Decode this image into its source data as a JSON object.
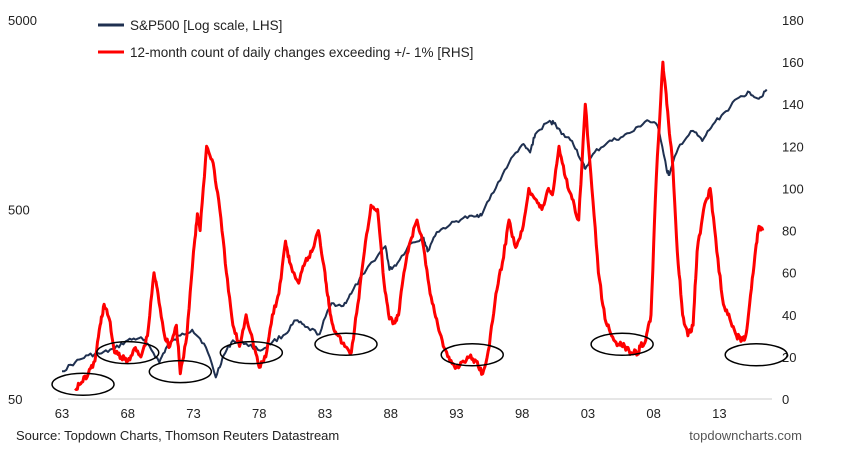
{
  "chart_data": {
    "type": "line",
    "title": "",
    "legend": [
      {
        "name": "S&P500 [Log scale, LHS]",
        "color": "#1f3050"
      },
      {
        "name": "12-month count of daily changes exceeding +/- 1% [RHS]",
        "color": "#ff0000"
      }
    ],
    "x_ticks": [
      "63",
      "68",
      "73",
      "78",
      "83",
      "88",
      "93",
      "98",
      "03",
      "08",
      "13"
    ],
    "x_tick_years": [
      1963,
      1968,
      1973,
      1978,
      1983,
      1988,
      1993,
      1998,
      2003,
      2008,
      2013
    ],
    "xlim": [
      1963,
      2017
    ],
    "left_axis": {
      "scale": "log",
      "ticks": [
        "50",
        "500",
        "5000"
      ],
      "tick_values": [
        50,
        500,
        5000
      ],
      "ylim": [
        50,
        5000
      ]
    },
    "right_axis": {
      "ticks": [
        "0",
        "20",
        "40",
        "60",
        "80",
        "100",
        "120",
        "140",
        "160",
        "180"
      ],
      "tick_values": [
        0,
        20,
        40,
        60,
        80,
        100,
        120,
        140,
        160,
        180
      ],
      "ylim": [
        0,
        180
      ]
    },
    "series": [
      {
        "name": "S&P500 [Log scale, LHS]",
        "axis": "left",
        "color": "#1f3050",
        "x": [
          1963.0,
          1964.0,
          1965.0,
          1966.0,
          1967.0,
          1968.0,
          1968.9,
          1969.5,
          1970.4,
          1971.0,
          1972.0,
          1972.9,
          1973.8,
          1974.7,
          1975.3,
          1976.0,
          1977.0,
          1978.1,
          1979.0,
          1980.0,
          1980.8,
          1981.5,
          1982.6,
          1983.5,
          1984.4,
          1985.0,
          1986.0,
          1987.6,
          1987.9,
          1988.5,
          1989.5,
          1990.5,
          1990.8,
          1991.5,
          1992.5,
          1993.5,
          1994.5,
          1995.0,
          1996.0,
          1997.0,
          1998.0,
          1998.6,
          1999.0,
          2000.0,
          2000.5,
          2001.0,
          2001.8,
          2002.5,
          2002.8,
          2003.5,
          2004.5,
          2005.5,
          2006.5,
          2007.5,
          2008.3,
          2009.0,
          2009.2,
          2010.0,
          2011.0,
          2011.7,
          2012.5,
          2013.5,
          2014.5,
          2015.3,
          2016.0,
          2016.6
        ],
        "values": [
          70,
          78,
          85,
          87,
          92,
          102,
          105,
          98,
          78,
          95,
          108,
          116,
          98,
          65,
          85,
          102,
          98,
          90,
          100,
          110,
          130,
          120,
          110,
          160,
          155,
          180,
          230,
          320,
          240,
          260,
          330,
          355,
          300,
          380,
          415,
          450,
          460,
          480,
          650,
          880,
          1100,
          1000,
          1250,
          1450,
          1430,
          1250,
          1150,
          900,
          820,
          1000,
          1130,
          1200,
          1300,
          1480,
          1380,
          800,
          760,
          1100,
          1300,
          1150,
          1400,
          1650,
          1950,
          2080,
          1920,
          2150
        ]
      },
      {
        "name": "12-month count of daily changes exceeding +/- 1% [RHS]",
        "axis": "right",
        "color": "#ff0000",
        "x": [
          1964.0,
          1964.5,
          1965.0,
          1965.5,
          1965.9,
          1966.2,
          1966.6,
          1967.0,
          1967.5,
          1968.0,
          1968.5,
          1969.0,
          1969.5,
          1970.0,
          1970.3,
          1970.8,
          1971.2,
          1971.7,
          1972.0,
          1972.5,
          1973.0,
          1973.3,
          1973.5,
          1974.0,
          1974.5,
          1975.0,
          1975.5,
          1976.0,
          1976.5,
          1977.0,
          1977.5,
          1978.0,
          1978.5,
          1979.0,
          1979.5,
          1980.0,
          1980.3,
          1981.0,
          1981.5,
          1982.0,
          1982.5,
          1983.0,
          1983.3,
          1983.6,
          1984.0,
          1984.5,
          1985.0,
          1985.5,
          1986.0,
          1986.5,
          1987.0,
          1987.5,
          1987.9,
          1988.3,
          1988.6,
          1989.0,
          1989.5,
          1990.0,
          1990.5,
          1991.0,
          1991.5,
          1992.0,
          1992.5,
          1993.0,
          1993.5,
          1994.0,
          1994.5,
          1995.0,
          1995.5,
          1996.0,
          1996.5,
          1997.0,
          1997.5,
          1998.0,
          1998.5,
          1999.0,
          1999.5,
          2000.0,
          2000.3,
          2000.8,
          2001.3,
          2001.8,
          2002.3,
          2002.8,
          2003.3,
          2003.8,
          2004.3,
          2004.8,
          2005.3,
          2005.8,
          2006.3,
          2006.8,
          2007.0,
          2007.4,
          2007.8,
          2008.2,
          2008.7,
          2009.0,
          2009.4,
          2009.8,
          2010.2,
          2010.6,
          2011.0,
          2011.3,
          2011.8,
          2012.3,
          2012.8,
          2013.3,
          2013.8,
          2014.3,
          2014.7,
          2015.0,
          2015.3,
          2015.7,
          2016.0,
          2016.3
        ],
        "values": [
          5,
          8,
          12,
          18,
          35,
          45,
          38,
          22,
          20,
          18,
          24,
          20,
          30,
          60,
          50,
          30,
          25,
          35,
          12,
          30,
          70,
          88,
          80,
          120,
          112,
          90,
          60,
          35,
          25,
          40,
          28,
          15,
          20,
          40,
          50,
          75,
          65,
          55,
          65,
          70,
          80,
          60,
          45,
          35,
          30,
          25,
          22,
          45,
          70,
          92,
          90,
          55,
          38,
          36,
          40,
          60,
          75,
          85,
          72,
          50,
          38,
          25,
          18,
          15,
          18,
          20,
          18,
          12,
          25,
          50,
          65,
          85,
          72,
          80,
          100,
          95,
          90,
          100,
          97,
          120,
          105,
          95,
          85,
          140,
          100,
          60,
          38,
          30,
          26,
          25,
          22,
          22,
          25,
          28,
          40,
          105,
          160,
          140,
          115,
          70,
          40,
          30,
          35,
          70,
          90,
          100,
          70,
          45,
          38,
          30,
          28,
          30,
          45,
          68,
          82,
          80
        ]
      }
    ],
    "annotations": {
      "circles_description": "ellipses marking volatility troughs",
      "circles": [
        {
          "year": 1964.6,
          "right_value": 7
        },
        {
          "year": 1968.0,
          "right_value": 22
        },
        {
          "year": 1972.0,
          "right_value": 13
        },
        {
          "year": 1977.4,
          "right_value": 22
        },
        {
          "year": 1984.6,
          "right_value": 26
        },
        {
          "year": 1994.2,
          "right_value": 21
        },
        {
          "year": 2005.6,
          "right_value": 26
        },
        {
          "year": 2015.8,
          "right_value": 21
        }
      ]
    },
    "source_text": "Source: Topdown Charts, Thomson Reuters Datastream",
    "watermark_text": "topdowncharts.com"
  }
}
